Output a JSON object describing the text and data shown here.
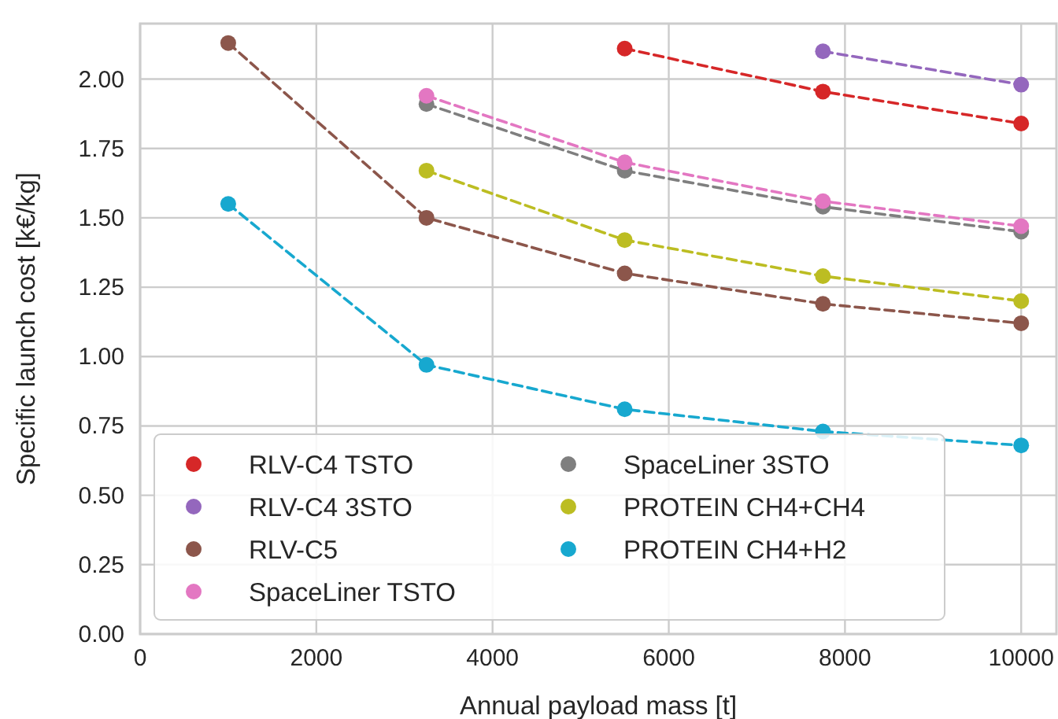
{
  "chart_data": {
    "type": "line",
    "xlabel": "Annual payload mass [t]",
    "ylabel": "Specific launch cost [k€/kg]",
    "x": [
      1000,
      3250,
      5500,
      7750,
      10000
    ],
    "series": [
      {
        "name": "RLV-C4 TSTO",
        "color": "#d62728",
        "values": [
          null,
          null,
          2.11,
          1.955,
          1.84
        ]
      },
      {
        "name": "RLV-C4 3STO",
        "color": "#9467bd",
        "values": [
          null,
          null,
          null,
          2.1,
          1.98
        ]
      },
      {
        "name": "RLV-C5",
        "color": "#8c564b",
        "values": [
          2.13,
          1.5,
          1.3,
          1.19,
          1.12
        ]
      },
      {
        "name": "SpaceLiner TSTO",
        "color": "#e377c2",
        "values": [
          null,
          1.94,
          1.7,
          1.56,
          1.47
        ]
      },
      {
        "name": "SpaceLiner 3STO",
        "color": "#7f7f7f",
        "values": [
          null,
          1.91,
          1.67,
          1.54,
          1.45
        ]
      },
      {
        "name": "PROTEIN CH4+CH4",
        "color": "#bcbd22",
        "values": [
          null,
          1.67,
          1.42,
          1.29,
          1.2
        ]
      },
      {
        "name": "PROTEIN CH4+H2",
        "color": "#17a8cf",
        "values": [
          1.55,
          0.97,
          0.81,
          0.73,
          0.68
        ]
      }
    ],
    "xlim": [
      0,
      10400
    ],
    "xticks": [
      0,
      2000,
      4000,
      6000,
      8000,
      10000
    ],
    "ylim": [
      0,
      2.2
    ],
    "yticks": [
      {
        "value": 0,
        "label": "0.00"
      },
      {
        "value": 0.25,
        "label": "0.25"
      },
      {
        "value": 0.5,
        "label": "0.50"
      },
      {
        "value": 0.75,
        "label": "0.75"
      },
      {
        "value": 1,
        "label": "1.00"
      },
      {
        "value": 1.25,
        "label": "1.25"
      },
      {
        "value": 1.5,
        "label": "1.50"
      },
      {
        "value": 1.75,
        "label": "1.75"
      },
      {
        "value": 2,
        "label": "2.00"
      }
    ],
    "grid": true,
    "legend": "bottom left",
    "marker": "circle",
    "line_style": "dashed"
  }
}
